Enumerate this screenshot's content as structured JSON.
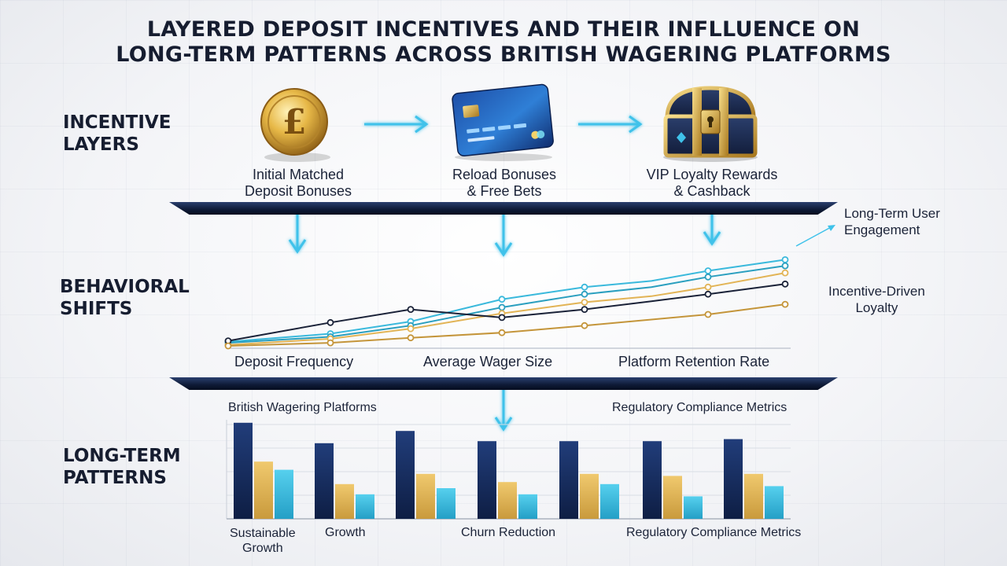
{
  "title": {
    "line1": "LAYERED DEPOSIT INCENTIVES AND THEIR INFLLUENCE ON",
    "line2": "LONG-TERM PATTERNS ACROSS BRITISH WAGERING PLATFORMS"
  },
  "sections": {
    "incentive": {
      "line1": "INCENTIVE",
      "line2": "LAYERS"
    },
    "behavioral": {
      "line1": "BEHAVIORAL",
      "line2": "SHIFTS"
    },
    "longterm": {
      "line1": "LONG-TERM",
      "line2": "PATTERNS"
    }
  },
  "incentives": [
    {
      "icon": "pound-coin-icon",
      "line1": "Initial Matched",
      "line2": "Deposit Bonuses"
    },
    {
      "icon": "credit-card-icon",
      "line1": "Reload Bonuses",
      "line2": "& Free Bets"
    },
    {
      "icon": "treasure-chest-icon",
      "line1": "VIP Loyalty Rewards",
      "line2": "& Cashback"
    }
  ],
  "behavior": {
    "x_labels": [
      "Deposit Frequency",
      "Average Wager Size",
      "Platform Retention Rate"
    ],
    "annotations": {
      "engagement_line1": "Long-Term User",
      "engagement_line2": "Engagement",
      "loyalty_line1": "Incentive-Driven",
      "loyalty_line2": "Loyalty"
    }
  },
  "patterns": {
    "top_left_label": "British Wagering Platforms",
    "top_right_label": "Regulatory Compliance Metrics",
    "x_labels": {
      "sustainable_line1": "Sustainable",
      "sustainable_line2": "Growth",
      "growth": "Growth",
      "churn": "Churn Reduction",
      "regulatory": "Regulatory Compliance Metrics"
    }
  },
  "colors": {
    "navy": "#14295a",
    "gold": "#e2b456",
    "cyan": "#3ab9dc",
    "teal": "#2a9fbf",
    "dark": "#1a2238",
    "bronze": "#c4953a",
    "arrow": "#3fc2ea"
  },
  "chart_data": [
    {
      "type": "line",
      "x": [
        0,
        1,
        2,
        3,
        4,
        5,
        6,
        7
      ],
      "xlabel": "",
      "ylabel": "",
      "ylim": [
        0,
        100
      ],
      "grid": false,
      "series": [
        {
          "values": [
            4,
            12,
            24,
            46,
            58,
            64,
            74,
            85
          ],
          "color": "#3ab9dc"
        },
        {
          "values": [
            3,
            9,
            20,
            38,
            51,
            58,
            68,
            79
          ],
          "color": "#2a9fbf"
        },
        {
          "values": [
            1,
            7,
            17,
            32,
            43,
            49,
            58,
            72
          ],
          "color": "#e2b456"
        },
        {
          "values": [
            5,
            23,
            36,
            28,
            36,
            44,
            51,
            61
          ],
          "color": "#1a2238"
        },
        {
          "values": [
            0,
            3,
            8,
            13,
            20,
            26,
            31,
            41
          ],
          "color": "#c4953a"
        }
      ]
    },
    {
      "type": "bar",
      "categories": [
        "1",
        "2",
        "3",
        "4",
        "5",
        "6",
        "7"
      ],
      "ylim": [
        0,
        100
      ],
      "series": [
        {
          "values": [
            94,
            74,
            86,
            76,
            76,
            76,
            78
          ],
          "color": "#14295a"
        },
        {
          "values": [
            56,
            34,
            44,
            36,
            44,
            42,
            44
          ],
          "color": "#e2b456"
        },
        {
          "values": [
            48,
            24,
            30,
            24,
            34,
            22,
            32
          ],
          "color": "#3ab9dc"
        }
      ]
    }
  ]
}
